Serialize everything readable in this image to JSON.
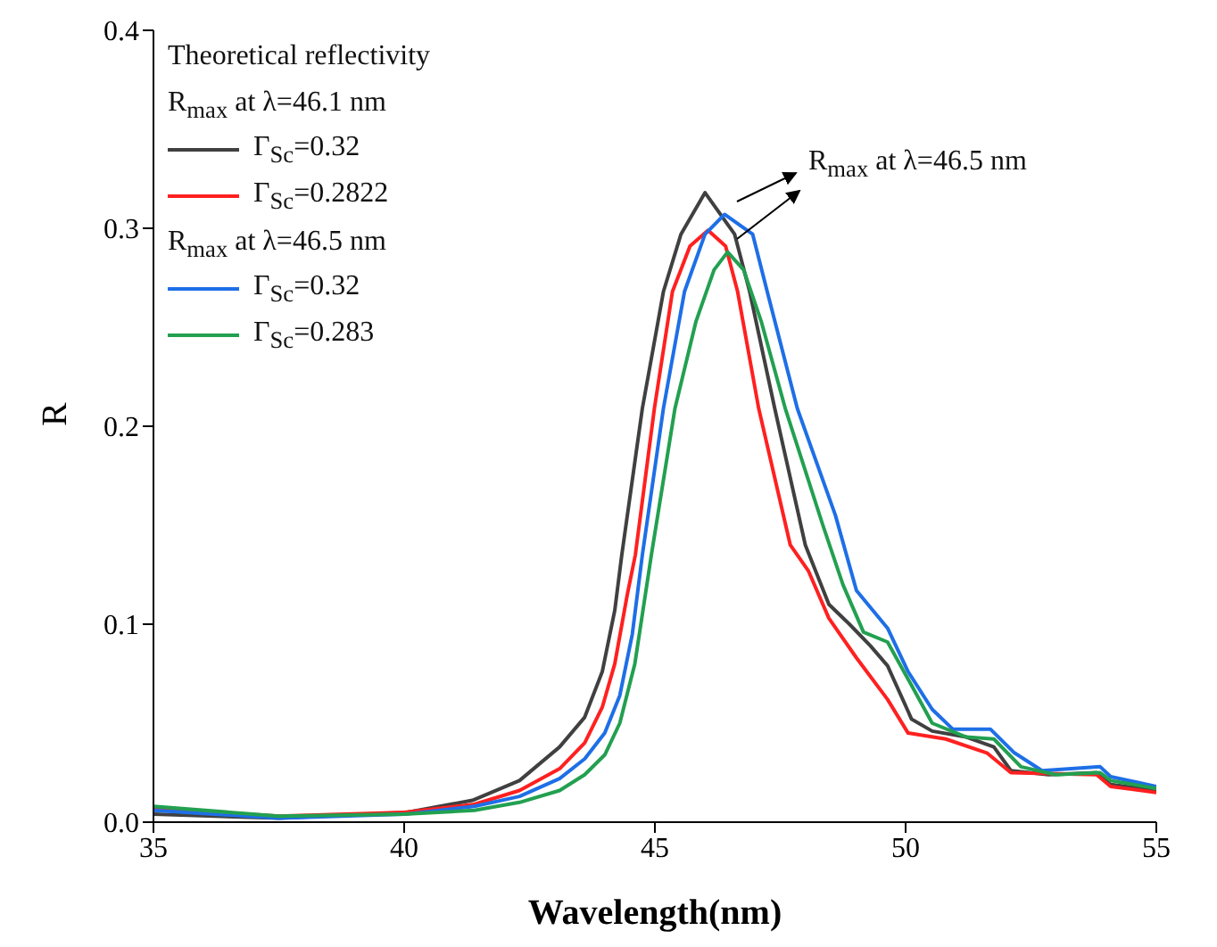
{
  "chart_data": {
    "type": "line",
    "xlabel": "Wavelength(nm)",
    "ylabel": "R",
    "legend_title": "Theoretical reflectivity",
    "legend": "top left",
    "marker": "none",
    "line_style": "solid",
    "xlim": [
      35,
      55
    ],
    "xticks": [
      35,
      40,
      45,
      50,
      55
    ],
    "ylim": [
      0,
      0.4
    ],
    "yticks": [
      {
        "value": 0,
        "label": "0.0"
      },
      {
        "value": 0.1,
        "label": "0.1"
      },
      {
        "value": 0.2,
        "label": "0.2"
      },
      {
        "value": 0.3,
        "label": "0.3"
      },
      {
        "value": 0.4,
        "label": "0.4"
      }
    ],
    "annotations": [
      "R$_{max}$ at λ=46.1 nm",
      "R$_{max}$ at λ=46.5 nm",
      "R$_{max}$ at λ=46.5 nm"
    ],
    "series": [
      {
        "name": "Γ$_{Sc}$=0.32",
        "color": "#404040",
        "x": [
          35,
          37.5,
          40.06,
          41.36,
          42.3,
          43.1,
          43.6,
          43.95,
          44.2,
          44.34,
          44.75,
          45.17,
          45.52,
          46.0,
          46.59,
          46.89,
          47.39,
          48.0,
          48.47,
          48.88,
          49.3,
          49.64,
          50.12,
          50.53,
          51.21,
          51.76,
          52.1,
          52.85,
          53.81,
          54.09,
          55
        ],
        "values": [
          0.004,
          0.002,
          0.005,
          0.011,
          0.021,
          0.038,
          0.053,
          0.076,
          0.107,
          0.135,
          0.209,
          0.268,
          0.297,
          0.318,
          0.297,
          0.268,
          0.209,
          0.14,
          0.11,
          0.1,
          0.089,
          0.079,
          0.052,
          0.046,
          0.043,
          0.038,
          0.026,
          0.024,
          0.025,
          0.019,
          0.016
        ]
      },
      {
        "name": "Γ$_{Sc}$=0.2822",
        "color": "#ff2020",
        "x": [
          35,
          37.5,
          40,
          41.4,
          42.3,
          43.1,
          43.6,
          43.95,
          44.2,
          44.45,
          44.61,
          44.99,
          45.35,
          45.7,
          46.06,
          46.41,
          46.65,
          47.07,
          47.7,
          48.06,
          48.47,
          49.02,
          49.64,
          50.05,
          50.8,
          51.62,
          52.1,
          53.81,
          54.09,
          55
        ],
        "values": [
          0.007,
          0.003,
          0.005,
          0.009,
          0.016,
          0.027,
          0.04,
          0.058,
          0.08,
          0.115,
          0.135,
          0.209,
          0.268,
          0.291,
          0.299,
          0.291,
          0.268,
          0.209,
          0.14,
          0.127,
          0.103,
          0.083,
          0.062,
          0.045,
          0.042,
          0.035,
          0.025,
          0.024,
          0.018,
          0.015
        ]
      },
      {
        "name": "Γ$_{Sc}$=0.32",
        "color": "#1e6fe6",
        "x": [
          35,
          37.5,
          40,
          41.4,
          42.3,
          43.1,
          43.6,
          44.0,
          44.3,
          44.55,
          44.75,
          45.17,
          45.59,
          46.0,
          46.39,
          46.95,
          47.24,
          47.84,
          48.6,
          49.02,
          49.64,
          50.05,
          50.53,
          50.94,
          51.69,
          52.17,
          52.72,
          53.88,
          54.09,
          55
        ],
        "values": [
          0.006,
          0.002,
          0.004,
          0.008,
          0.013,
          0.022,
          0.032,
          0.045,
          0.064,
          0.095,
          0.135,
          0.209,
          0.268,
          0.297,
          0.307,
          0.297,
          0.268,
          0.209,
          0.155,
          0.117,
          0.098,
          0.076,
          0.057,
          0.047,
          0.047,
          0.035,
          0.026,
          0.028,
          0.023,
          0.018
        ]
      },
      {
        "name": "Γ$_{Sc}$=0.283",
        "color": "#22a050",
        "x": [
          35,
          37.5,
          40,
          41.4,
          42.3,
          43.1,
          43.6,
          44.0,
          44.3,
          44.6,
          44.93,
          45.4,
          45.82,
          46.18,
          46.45,
          46.77,
          47.12,
          47.6,
          48.35,
          48.75,
          49.16,
          49.64,
          50.12,
          50.53,
          51.21,
          51.76,
          52.3,
          52.99,
          53.88,
          54.09,
          55
        ],
        "values": [
          0.008,
          0.003,
          0.004,
          0.006,
          0.01,
          0.016,
          0.024,
          0.034,
          0.05,
          0.08,
          0.135,
          0.209,
          0.253,
          0.279,
          0.288,
          0.279,
          0.253,
          0.209,
          0.15,
          0.12,
          0.096,
          0.091,
          0.069,
          0.05,
          0.043,
          0.042,
          0.028,
          0.024,
          0.025,
          0.021,
          0.017
        ]
      }
    ]
  }
}
